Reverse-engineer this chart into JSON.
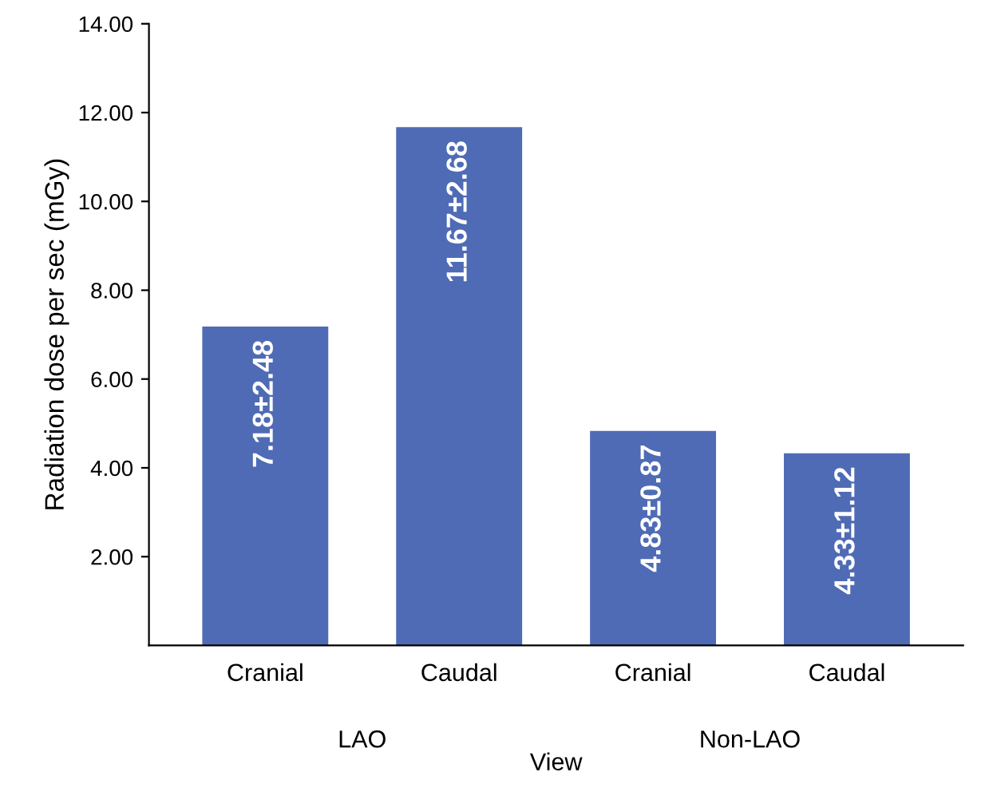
{
  "chart_data": {
    "type": "bar",
    "ylabel": "Radiation dose per sec (mGy)",
    "xlabel": "View",
    "categories": [
      "Cranial",
      "Caudal",
      "Cranial",
      "Caudal"
    ],
    "values": [
      7.18,
      11.67,
      4.83,
      4.33
    ],
    "value_labels": [
      "7.18±2.48",
      "11.67±2.68",
      "4.83±0.87",
      "4.33±1.12"
    ],
    "color": "#4f6bb5",
    "ylim": [
      0,
      14
    ],
    "yticks": [
      {
        "value": 2,
        "label": "2.00"
      },
      {
        "value": 4,
        "label": "4.00"
      },
      {
        "value": 6,
        "label": "6.00"
      },
      {
        "value": 8,
        "label": "8.00"
      },
      {
        "value": 10,
        "label": "10.00"
      },
      {
        "value": 12,
        "label": "12.00"
      },
      {
        "value": 14,
        "label": "14.00"
      }
    ],
    "annotations": [
      "LAO",
      "Non-LAO"
    ],
    "grid": false
  }
}
